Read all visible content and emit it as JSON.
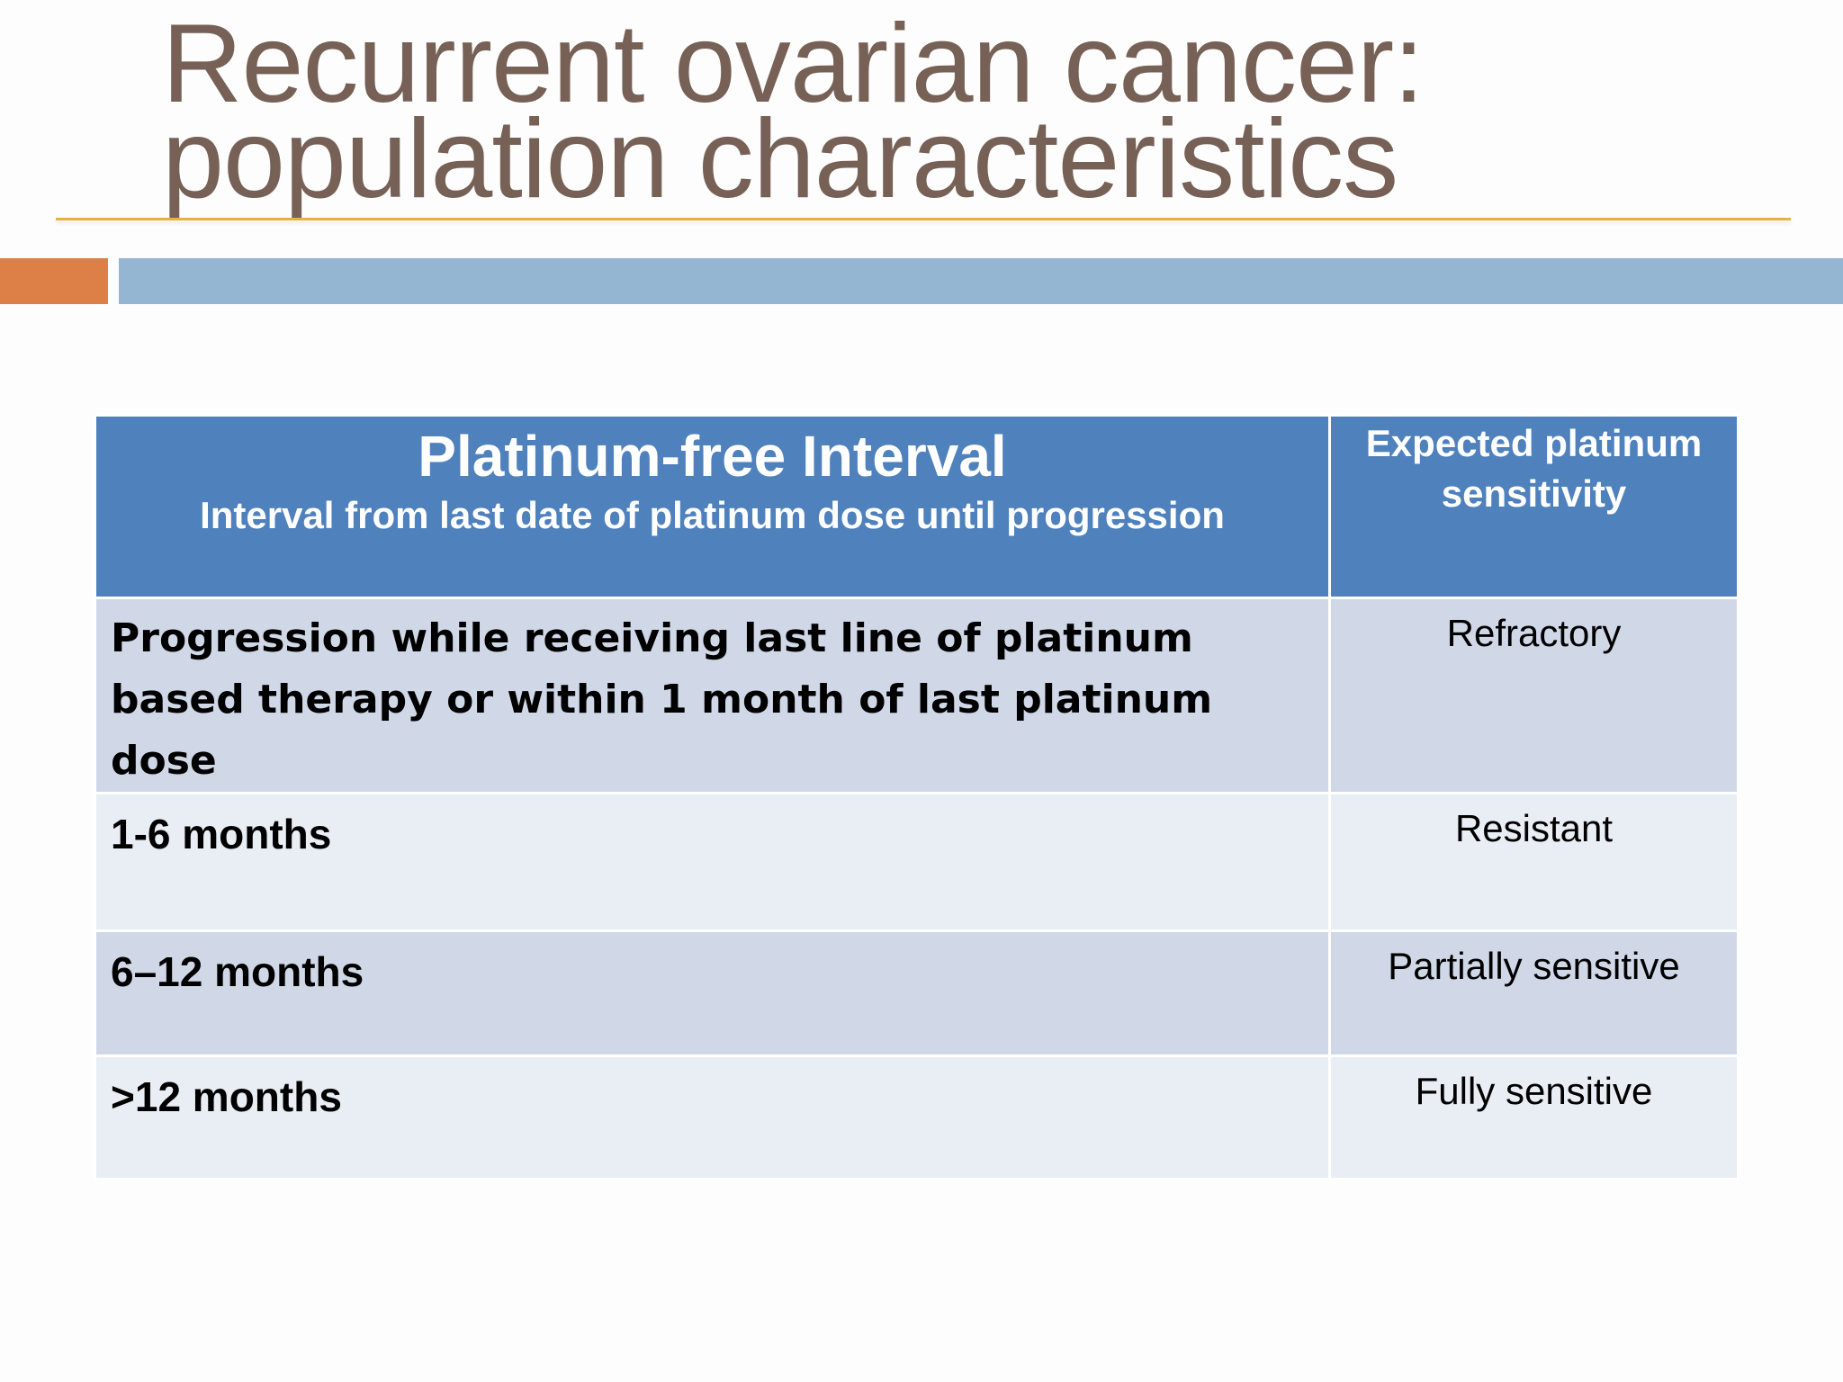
{
  "slide": {
    "title_lines": [
      "Recurrent ovarian cancer:",
      "population characteristics"
    ]
  },
  "table": {
    "header": {
      "col1_title": "Platinum-free Interval",
      "col1_subtitle": "Interval from last date of platinum dose until  progression",
      "col2_title": "Expected platinum sensitivity"
    },
    "rows": [
      {
        "interval": "Progression while receiving last line of platinum based therapy or within 1 month of last platinum dose",
        "sensitivity": "Refractory"
      },
      {
        "interval": "1-6 months",
        "sensitivity": "Resistant"
      },
      {
        "interval": "6–12 months",
        "sensitivity": "Partially sensitive"
      },
      {
        "interval": ">12 months",
        "sensitivity": "Fully sensitive"
      }
    ]
  },
  "colors": {
    "title": "#776156",
    "rule": "#e7b43a",
    "accent_orange": "#dd8047",
    "accent_blue": "#94b6d2",
    "table_header": "#4f81bd",
    "row_dark": "#d0d8e8",
    "row_light": "#e9edf4"
  }
}
